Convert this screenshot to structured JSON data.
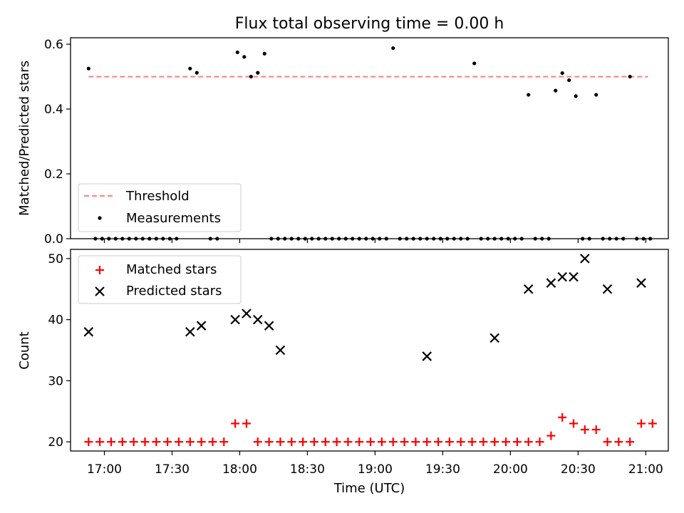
{
  "chart_data": [
    {
      "type": "scatter",
      "title": "Flux total observing time = 0.00 h",
      "xlabel": "",
      "ylabel": "Matched/Predicted stars",
      "xlim": [
        "16:45",
        "21:10"
      ],
      "ylim": [
        0,
        0.62
      ],
      "y_ticks": [
        "0.0",
        "0.2",
        "0.4",
        "0.6"
      ],
      "grid": false,
      "legend_position": "lower-left",
      "threshold": {
        "name": "Threshold",
        "value": 0.5,
        "x_range": [
          "16:53",
          "21:01"
        ],
        "color": "#ff7f7f",
        "style": "dashed"
      },
      "series": [
        {
          "name": "Measurements",
          "marker": "dot",
          "color": "#000000",
          "points": [
            [
              "16:53",
              0.525
            ],
            [
              "16:56",
              0.0
            ],
            [
              "16:59",
              0.0
            ],
            [
              "17:02",
              0.0
            ],
            [
              "17:05",
              0.0
            ],
            [
              "17:08",
              0.0
            ],
            [
              "17:11",
              0.0
            ],
            [
              "17:14",
              0.0
            ],
            [
              "17:17",
              0.0
            ],
            [
              "17:20",
              0.0
            ],
            [
              "17:23",
              0.0
            ],
            [
              "17:26",
              0.0
            ],
            [
              "17:29",
              0.0
            ],
            [
              "17:32",
              0.0
            ],
            [
              "17:38",
              0.525
            ],
            [
              "17:41",
              0.512
            ],
            [
              "17:47",
              0.0
            ],
            [
              "17:50",
              0.0
            ],
            [
              "17:59",
              0.575
            ],
            [
              "18:02",
              0.561
            ],
            [
              "18:05",
              0.5
            ],
            [
              "18:08",
              0.512
            ],
            [
              "18:11",
              0.571
            ],
            [
              "18:14",
              0.0
            ],
            [
              "18:17",
              0.0
            ],
            [
              "18:20",
              0.0
            ],
            [
              "18:23",
              0.0
            ],
            [
              "18:26",
              0.0
            ],
            [
              "18:29",
              0.0
            ],
            [
              "18:32",
              0.0
            ],
            [
              "18:35",
              0.0
            ],
            [
              "18:38",
              0.0
            ],
            [
              "18:41",
              0.0
            ],
            [
              "18:44",
              0.0
            ],
            [
              "18:47",
              0.0
            ],
            [
              "18:50",
              0.0
            ],
            [
              "18:53",
              0.0
            ],
            [
              "18:56",
              0.0
            ],
            [
              "18:59",
              0.0
            ],
            [
              "19:02",
              0.0
            ],
            [
              "19:05",
              0.0
            ],
            [
              "19:08",
              0.588
            ],
            [
              "19:11",
              0.0
            ],
            [
              "19:14",
              0.0
            ],
            [
              "19:17",
              0.0
            ],
            [
              "19:20",
              0.0
            ],
            [
              "19:23",
              0.0
            ],
            [
              "19:26",
              0.0
            ],
            [
              "19:29",
              0.0
            ],
            [
              "19:32",
              0.0
            ],
            [
              "19:35",
              0.0
            ],
            [
              "19:38",
              0.0
            ],
            [
              "19:41",
              0.0
            ],
            [
              "19:44",
              0.541
            ],
            [
              "19:47",
              0.0
            ],
            [
              "19:50",
              0.0
            ],
            [
              "19:53",
              0.0
            ],
            [
              "19:56",
              0.0
            ],
            [
              "19:59",
              0.0
            ],
            [
              "20:02",
              0.0
            ],
            [
              "20:05",
              0.0
            ],
            [
              "20:08",
              0.444
            ],
            [
              "20:11",
              0.0
            ],
            [
              "20:14",
              0.0
            ],
            [
              "20:17",
              0.0
            ],
            [
              "20:20",
              0.457
            ],
            [
              "20:23",
              0.511
            ],
            [
              "20:26",
              0.489
            ],
            [
              "20:29",
              0.44
            ],
            [
              "20:32",
              0.0
            ],
            [
              "20:35",
              0.0
            ],
            [
              "20:38",
              0.444
            ],
            [
              "20:41",
              0.0
            ],
            [
              "20:44",
              0.0
            ],
            [
              "20:47",
              0.0
            ],
            [
              "20:50",
              0.0
            ],
            [
              "20:53",
              0.5
            ],
            [
              "20:56",
              0.0
            ],
            [
              "20:59",
              0.0
            ],
            [
              "21:02",
              0.0
            ]
          ]
        }
      ]
    },
    {
      "type": "scatter",
      "title": "",
      "xlabel": "Time (UTC)",
      "ylabel": "Count",
      "xlim": [
        "16:45",
        "21:10"
      ],
      "ylim": [
        18.5,
        51.5
      ],
      "y_ticks": [
        "20",
        "30",
        "40",
        "50"
      ],
      "x_ticks": [
        "17:00",
        "17:30",
        "18:00",
        "18:30",
        "19:00",
        "19:30",
        "20:00",
        "20:30",
        "21:00"
      ],
      "grid": false,
      "legend_position": "upper-left",
      "series": [
        {
          "name": "Matched stars",
          "marker": "plus",
          "color": "#ff0000",
          "points": [
            [
              "16:53",
              20
            ],
            [
              "16:58",
              20
            ],
            [
              "17:03",
              20
            ],
            [
              "17:08",
              20
            ],
            [
              "17:13",
              20
            ],
            [
              "17:18",
              20
            ],
            [
              "17:23",
              20
            ],
            [
              "17:28",
              20
            ],
            [
              "17:33",
              20
            ],
            [
              "17:38",
              20
            ],
            [
              "17:43",
              20
            ],
            [
              "17:48",
              20
            ],
            [
              "17:53",
              20
            ],
            [
              "17:58",
              23
            ],
            [
              "18:03",
              23
            ],
            [
              "18:08",
              20
            ],
            [
              "18:13",
              20
            ],
            [
              "18:18",
              20
            ],
            [
              "18:23",
              20
            ],
            [
              "18:28",
              20
            ],
            [
              "18:33",
              20
            ],
            [
              "18:38",
              20
            ],
            [
              "18:43",
              20
            ],
            [
              "18:48",
              20
            ],
            [
              "18:53",
              20
            ],
            [
              "18:58",
              20
            ],
            [
              "19:03",
              20
            ],
            [
              "19:08",
              20
            ],
            [
              "19:13",
              20
            ],
            [
              "19:18",
              20
            ],
            [
              "19:23",
              20
            ],
            [
              "19:28",
              20
            ],
            [
              "19:33",
              20
            ],
            [
              "19:38",
              20
            ],
            [
              "19:43",
              20
            ],
            [
              "19:48",
              20
            ],
            [
              "19:53",
              20
            ],
            [
              "19:58",
              20
            ],
            [
              "20:03",
              20
            ],
            [
              "20:08",
              20
            ],
            [
              "20:13",
              20
            ],
            [
              "20:18",
              21
            ],
            [
              "20:23",
              24
            ],
            [
              "20:28",
              23
            ],
            [
              "20:33",
              22
            ],
            [
              "20:38",
              22
            ],
            [
              "20:43",
              20
            ],
            [
              "20:48",
              20
            ],
            [
              "20:53",
              20
            ],
            [
              "20:58",
              23
            ],
            [
              "21:03",
              23
            ]
          ]
        },
        {
          "name": "Predicted stars",
          "marker": "x",
          "color": "#000000",
          "points": [
            [
              "16:53",
              38
            ],
            [
              "17:38",
              38
            ],
            [
              "17:43",
              39
            ],
            [
              "17:58",
              40
            ],
            [
              "18:03",
              41
            ],
            [
              "18:08",
              40
            ],
            [
              "18:13",
              39
            ],
            [
              "18:18",
              35
            ],
            [
              "19:23",
              34
            ],
            [
              "19:53",
              37
            ],
            [
              "20:08",
              45
            ],
            [
              "20:18",
              46
            ],
            [
              "20:23",
              47
            ],
            [
              "20:28",
              47
            ],
            [
              "20:33",
              50
            ],
            [
              "20:43",
              45
            ],
            [
              "20:58",
              46
            ]
          ]
        }
      ]
    }
  ]
}
